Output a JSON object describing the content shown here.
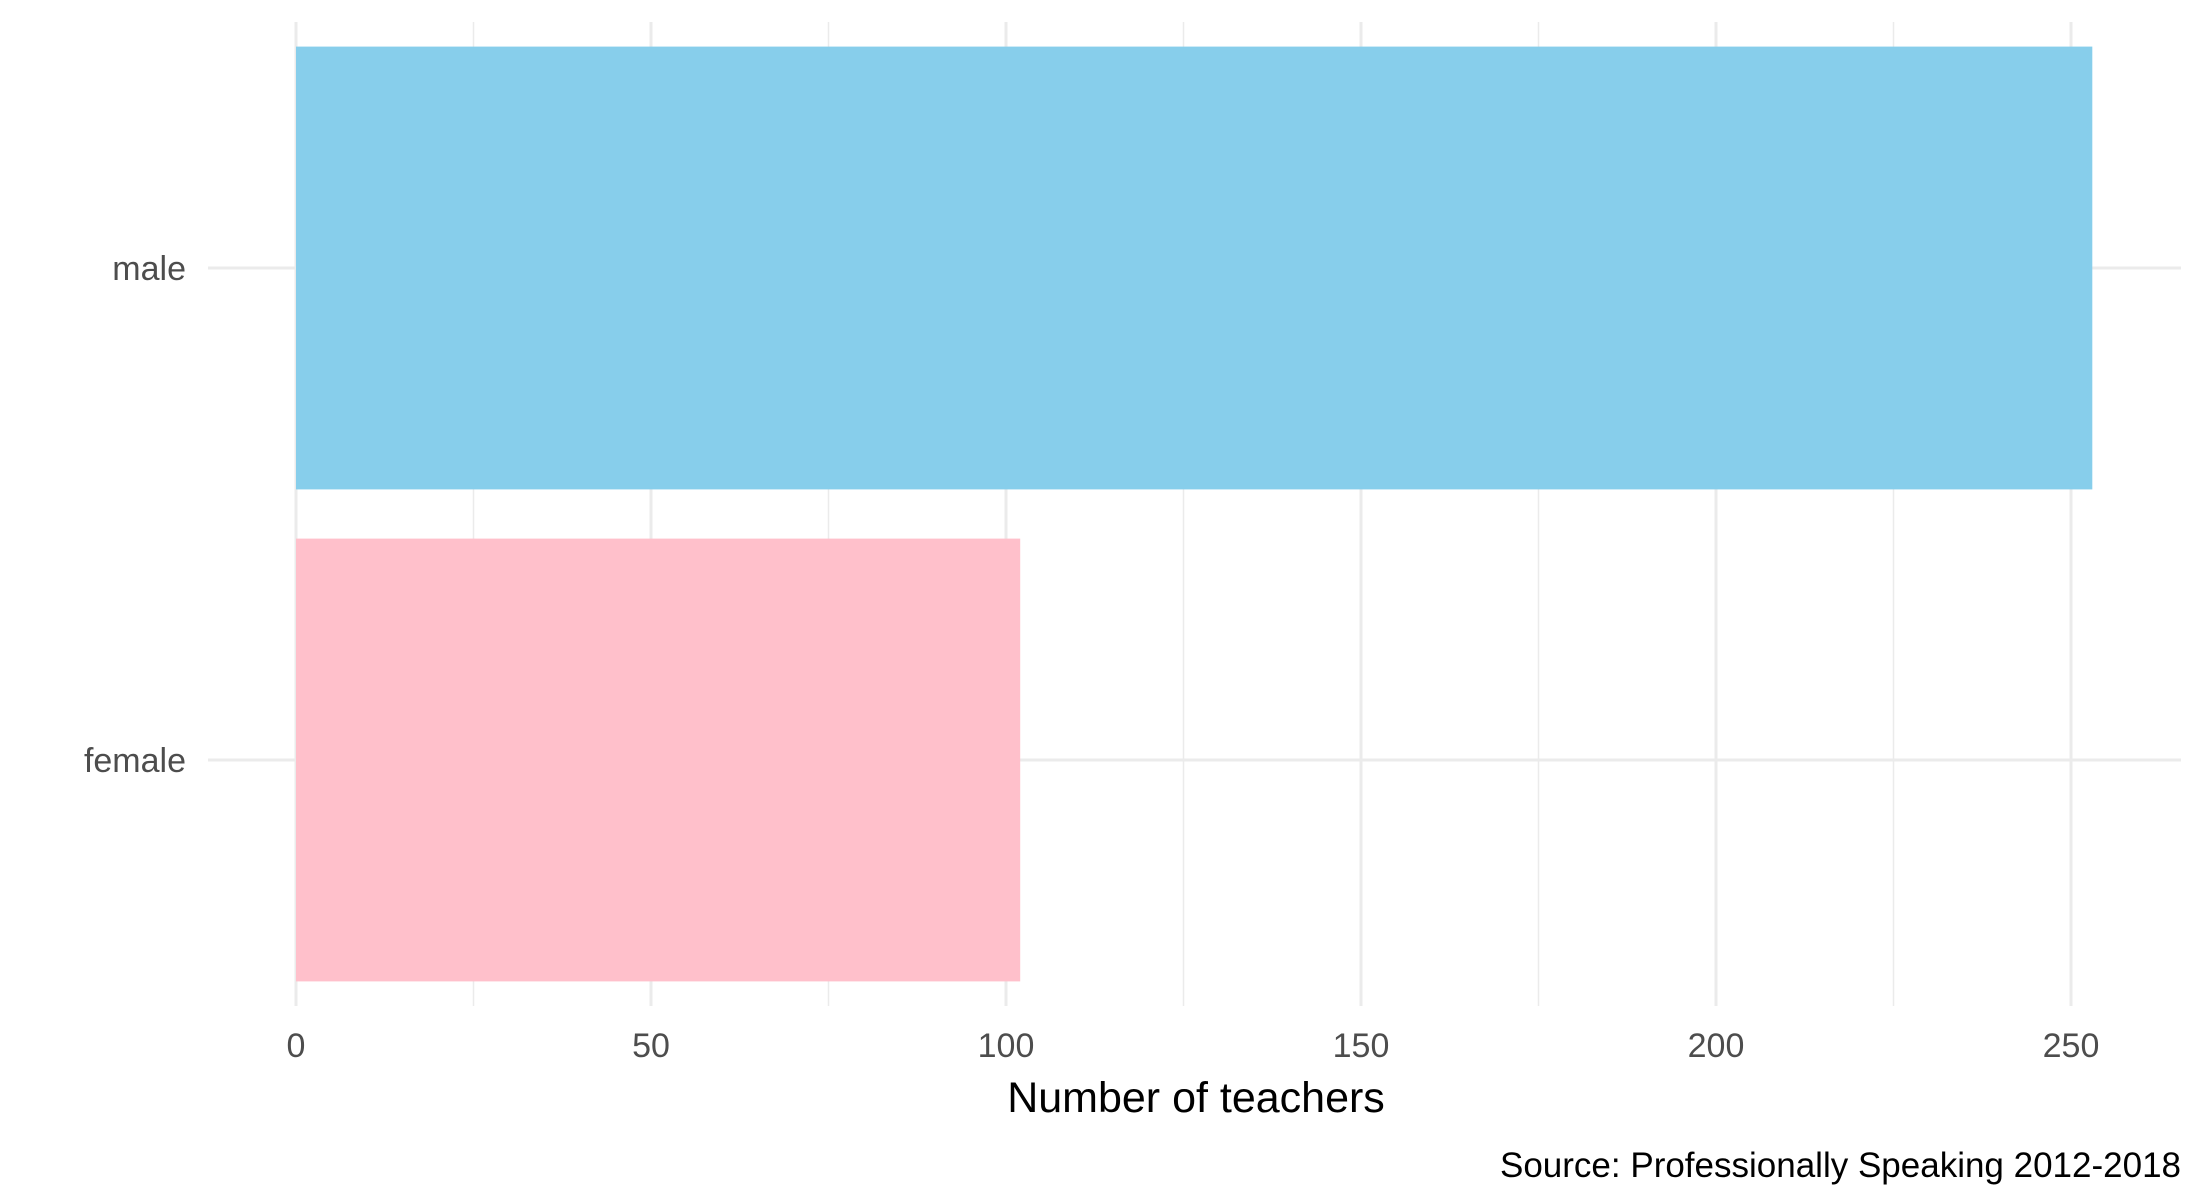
{
  "chart_data": {
    "type": "bar",
    "orientation": "horizontal",
    "categories": [
      "male",
      "female"
    ],
    "values": [
      253,
      102
    ],
    "bar_colors": [
      "#87CEEB",
      "#FFC0CB"
    ],
    "title": "",
    "xlabel": "Number of teachers",
    "ylabel": "",
    "xlim": [
      0,
      262
    ],
    "x_ticks": [
      0,
      50,
      100,
      150,
      200,
      250
    ],
    "x_tick_labels": [
      "0",
      "50",
      "100",
      "150",
      "200",
      "250"
    ],
    "grid": true,
    "legend": "none",
    "caption": "Source: Professionally Speaking 2012-2018"
  }
}
